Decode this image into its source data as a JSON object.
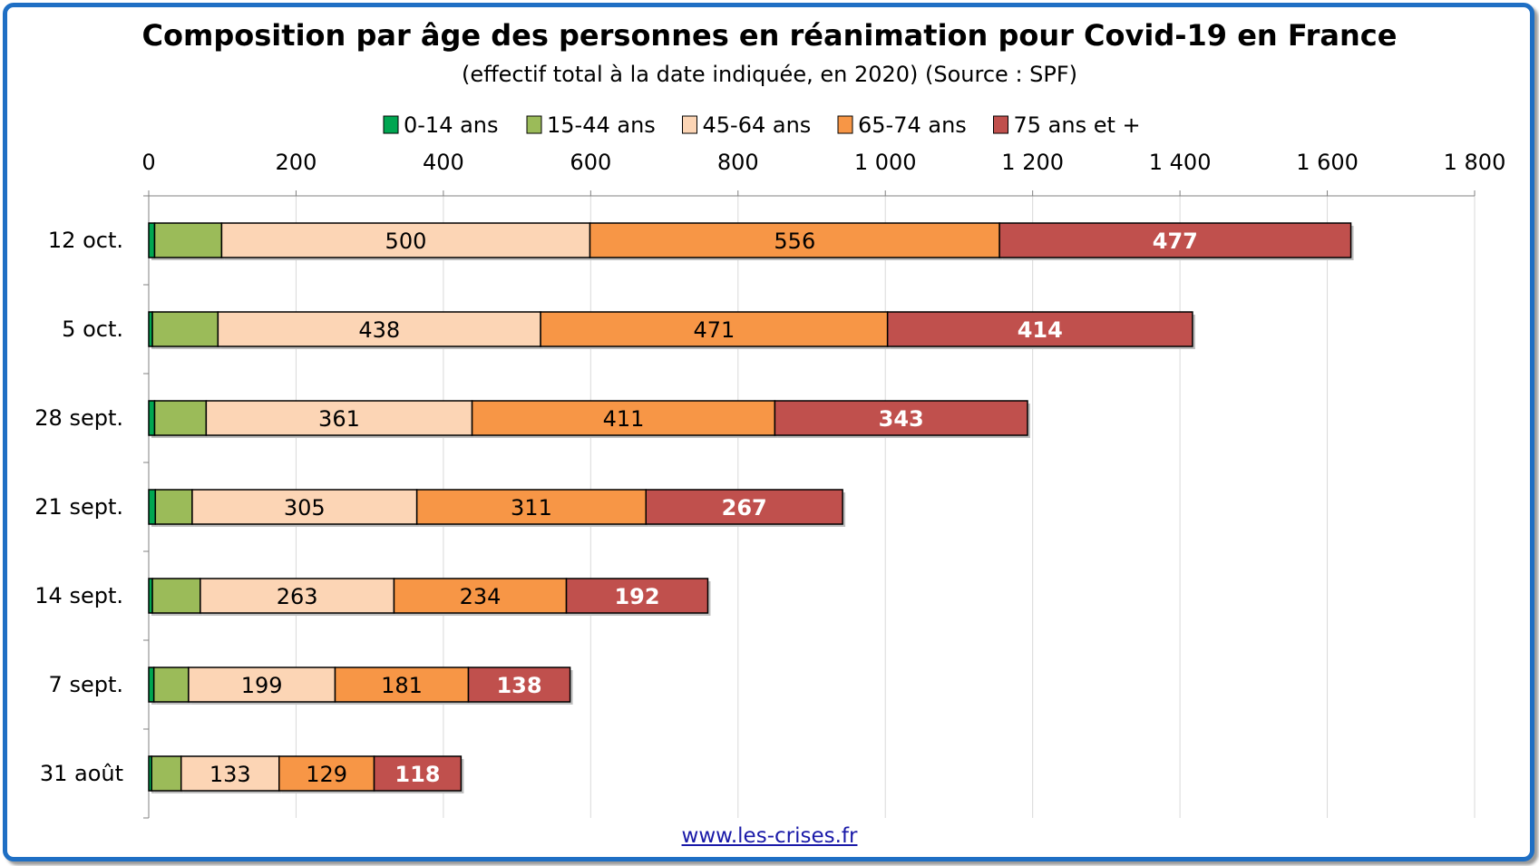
{
  "chart_data": {
    "type": "bar",
    "orientation": "horizontal",
    "stacked": true,
    "title": "Composition par âge des personnes en réanimation pour Covid-19 en France",
    "subtitle": "(effectif total à la date indiquée, en 2020) (Source : SPF)",
    "categories": [
      "12 oct.",
      "5 oct.",
      "28 sept.",
      "21 sept.",
      "14 sept.",
      "7 sept.",
      "31 août"
    ],
    "series": [
      {
        "name": "0-14 ans",
        "color": "#00a651",
        "values": [
          8,
          5,
          8,
          9,
          5,
          7,
          4
        ]
      },
      {
        "name": "15-44 ans",
        "color": "#9bbb59",
        "values": [
          91,
          89,
          70,
          50,
          65,
          47,
          40
        ]
      },
      {
        "name": "45-64 ans",
        "color": "#fcd5b5",
        "values": [
          500,
          438,
          361,
          305,
          263,
          199,
          133
        ]
      },
      {
        "name": "65-74 ans",
        "color": "#f79646",
        "values": [
          556,
          471,
          411,
          311,
          234,
          181,
          129
        ]
      },
      {
        "name": "75 ans et +",
        "color": "#c0504d",
        "values": [
          477,
          414,
          343,
          267,
          192,
          138,
          118
        ]
      }
    ],
    "labeled_series": [
      2,
      3,
      4
    ],
    "xlim": [
      0,
      1800
    ],
    "xticks": [
      0,
      200,
      400,
      600,
      800,
      1000,
      1200,
      1400,
      1600,
      1800
    ],
    "xtick_labels": [
      "0",
      "200",
      "400",
      "600",
      "800",
      "1 000",
      "1 200",
      "1 400",
      "1 600",
      "1 800"
    ],
    "x_axis_position": "top",
    "grid": true,
    "legend_position": "top"
  },
  "source": "www.les-crises.fr"
}
